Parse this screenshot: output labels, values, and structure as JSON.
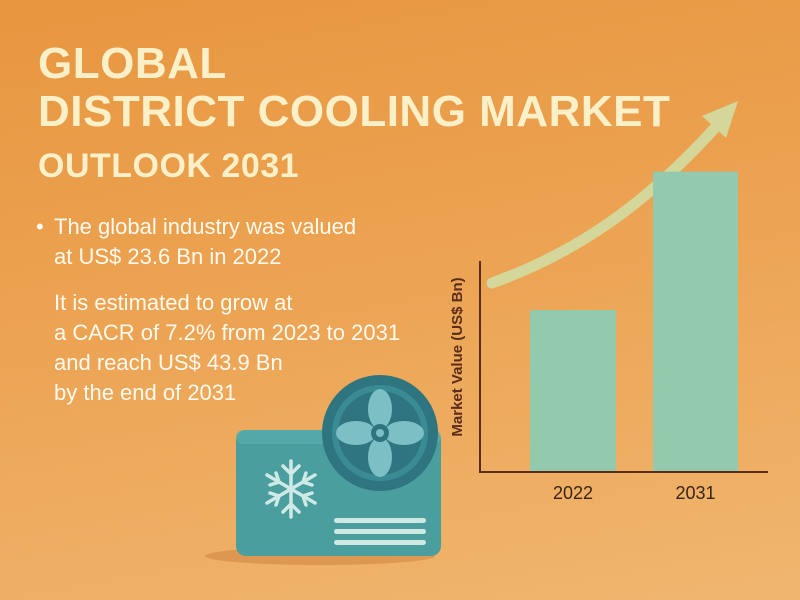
{
  "title": {
    "line1": "GLOBAL",
    "line2": "DISTRICT COOLING MARKET",
    "subtitle": "OUTLOOK 2031"
  },
  "facts": {
    "bullet_symbol": "•",
    "bullet_lines": [
      "The global industry was valued",
      "at US$ 23.6 Bn in 2022"
    ],
    "paragraph_lines": [
      "It is estimated to grow at",
      "a CACR of 7.2% from 2023 to 2031",
      "and reach US$ 43.9 Bn",
      "by the end of 2031"
    ]
  },
  "illustration": {
    "fan-icon": "fan-icon",
    "snowflake-icon": "snowflake-icon"
  },
  "colors": {
    "background": "#eca352",
    "title": "#fbf0c8",
    "bar": "#93c9ad",
    "arrow": "#d4d69a",
    "axis": "#5a2d1c",
    "unit_body": "#4a9e9e",
    "fan": "#357e88"
  },
  "chart_data": {
    "type": "bar",
    "categories": [
      "2022",
      "2031"
    ],
    "values": [
      23.6,
      43.9
    ],
    "ylabel": "Market Value (US$ Bn)",
    "ylim": [
      0,
      50
    ],
    "grid": false,
    "legend": "none",
    "trend_arrow": true
  }
}
